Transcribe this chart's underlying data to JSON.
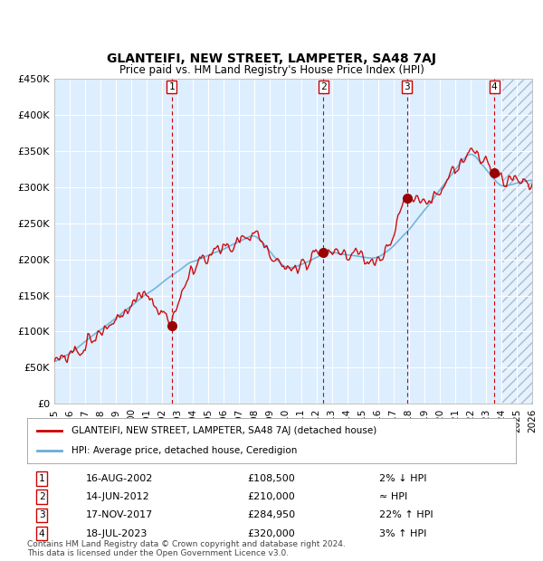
{
  "title": "GLANTEIFI, NEW STREET, LAMPETER, SA48 7AJ",
  "subtitle": "Price paid vs. HM Land Registry's House Price Index (HPI)",
  "legend_line1": "GLANTEIFI, NEW STREET, LAMPETER, SA48 7AJ (detached house)",
  "legend_line2": "HPI: Average price, detached house, Ceredigion",
  "footnote1": "Contains HM Land Registry data © Crown copyright and database right 2024.",
  "footnote2": "This data is licensed under the Open Government Licence v3.0.",
  "transactions": [
    {
      "num": 1,
      "date": "16-AUG-2002",
      "price": 108500,
      "year": 2002.62,
      "hpi_diff": "2% ↓ HPI"
    },
    {
      "num": 2,
      "date": "14-JUN-2012",
      "price": 210000,
      "year": 2012.45,
      "hpi_diff": "≈ HPI"
    },
    {
      "num": 3,
      "date": "17-NOV-2017",
      "price": 284950,
      "year": 2017.88,
      "hpi_diff": "22% ↑ HPI"
    },
    {
      "num": 4,
      "date": "18-JUL-2023",
      "price": 320000,
      "year": 2023.54,
      "hpi_diff": "3% ↑ HPI"
    }
  ],
  "x_min": 1995,
  "x_max": 2026,
  "y_min": 0,
  "y_max": 450000,
  "y_ticks": [
    0,
    50000,
    100000,
    150000,
    200000,
    250000,
    300000,
    350000,
    400000,
    450000
  ],
  "y_tick_labels": [
    "£0",
    "£50K",
    "£100K",
    "£150K",
    "£200K",
    "£250K",
    "£300K",
    "£350K",
    "£400K",
    "£450K"
  ],
  "x_ticks": [
    1995,
    1996,
    1997,
    1998,
    1999,
    2000,
    2001,
    2002,
    2003,
    2004,
    2005,
    2006,
    2007,
    2008,
    2009,
    2010,
    2011,
    2012,
    2013,
    2014,
    2015,
    2016,
    2017,
    2018,
    2019,
    2020,
    2021,
    2022,
    2023,
    2024,
    2025,
    2026
  ],
  "hpi_color": "#6aaed6",
  "price_color": "#cc0000",
  "bg_color": "#ddeeff",
  "hatch_color": "#bbccdd",
  "grid_color": "#ffffff",
  "dashed_color": "#cc0000",
  "dot_color": "#990000"
}
